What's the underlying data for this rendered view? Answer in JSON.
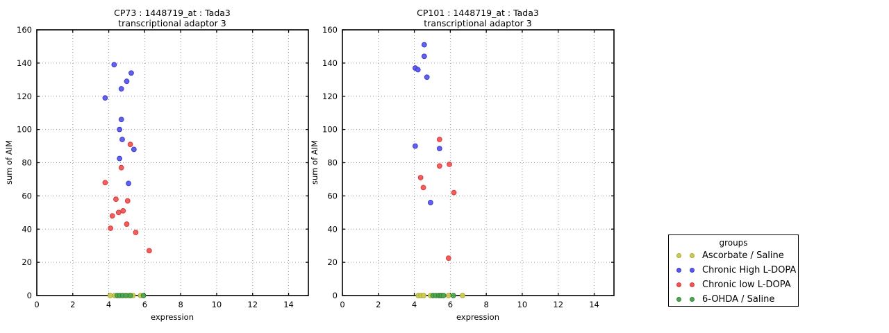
{
  "figure": {
    "background": "#ffffff"
  },
  "legend": {
    "title": "groups",
    "position": "right",
    "items": [
      {
        "label": "Ascorbate / Saline",
        "color": "#cccc55",
        "edge": "#aaaa33"
      },
      {
        "label": "Chronic High L-DOPA",
        "color": "#5959e8",
        "edge": "#3c3cd0"
      },
      {
        "label": "Chronic low L-DOPA",
        "color": "#f05555",
        "edge": "#d83c3c"
      },
      {
        "label": "6-OHDA / Saline",
        "color": "#4da64d",
        "edge": "#378437"
      }
    ]
  },
  "chart_data": [
    {
      "type": "scatter",
      "id": "CP73",
      "title_line1": "CP73 : 1448719_at : Tada3",
      "title_line2": "transcriptional adaptor 3",
      "xlabel": "expression",
      "ylabel": "sum of AIM",
      "xlim": [
        0,
        15.1
      ],
      "ylim": [
        0,
        160
      ],
      "xticks": [
        0,
        2,
        4,
        6,
        8,
        10,
        12,
        14
      ],
      "yticks": [
        0,
        20,
        40,
        60,
        80,
        100,
        120,
        140,
        160
      ],
      "grid": true,
      "series": [
        {
          "name": "Ascorbate / Saline",
          "color": "#cccc55",
          "edge": "#aaaa33",
          "points": [
            [
              4.08,
              0
            ],
            [
              4.33,
              0
            ],
            [
              5.08,
              0
            ],
            [
              5.35,
              0
            ],
            [
              5.77,
              0
            ]
          ]
        },
        {
          "name": "6-OHDA / Saline",
          "color": "#4da64d",
          "edge": "#378437",
          "points": [
            [
              4.47,
              0
            ],
            [
              4.62,
              0
            ],
            [
              4.78,
              0
            ],
            [
              4.95,
              0
            ],
            [
              5.2,
              0
            ],
            [
              5.93,
              0
            ]
          ]
        },
        {
          "name": "Chronic High L-DOPA",
          "color": "#5959e8",
          "edge": "#3c3cd0",
          "points": [
            [
              4.3,
              139
            ],
            [
              5.25,
              134
            ],
            [
              5.0,
              129
            ],
            [
              4.7,
              124.5
            ],
            [
              3.8,
              119
            ],
            [
              4.7,
              106
            ],
            [
              4.6,
              100
            ],
            [
              4.75,
              94
            ],
            [
              5.4,
              88
            ],
            [
              4.6,
              82.5
            ],
            [
              5.1,
              67.5
            ]
          ]
        },
        {
          "name": "Chronic low L-DOPA",
          "color": "#f05555",
          "edge": "#d83c3c",
          "points": [
            [
              5.2,
              91
            ],
            [
              4.7,
              77
            ],
            [
              3.8,
              68
            ],
            [
              4.4,
              58
            ],
            [
              5.05,
              57
            ],
            [
              4.8,
              51
            ],
            [
              4.55,
              50
            ],
            [
              4.2,
              48
            ],
            [
              5.0,
              43
            ],
            [
              4.1,
              40.5
            ],
            [
              5.5,
              38
            ],
            [
              6.25,
              27
            ]
          ]
        }
      ]
    },
    {
      "type": "scatter",
      "id": "CP101",
      "title_line1": "CP101 : 1448719_at : Tada3",
      "title_line2": "transcriptional adaptor 3",
      "xlabel": "expression",
      "ylabel": "sum of AIM",
      "xlim": [
        0,
        15.1
      ],
      "ylim": [
        0,
        160
      ],
      "xticks": [
        0,
        2,
        4,
        6,
        8,
        10,
        12,
        14
      ],
      "yticks": [
        0,
        20,
        40,
        60,
        80,
        100,
        120,
        140,
        160
      ],
      "grid": true,
      "series": [
        {
          "name": "Ascorbate / Saline",
          "color": "#cccc55",
          "edge": "#aaaa33",
          "points": [
            [
              4.22,
              0
            ],
            [
              4.37,
              0
            ],
            [
              4.52,
              0
            ],
            [
              4.9,
              0
            ],
            [
              5.9,
              0
            ],
            [
              6.68,
              0
            ]
          ]
        },
        {
          "name": "6-OHDA / Saline",
          "color": "#4da64d",
          "edge": "#378437",
          "points": [
            [
              5.04,
              0
            ],
            [
              5.2,
              0
            ],
            [
              5.36,
              0
            ],
            [
              5.45,
              0
            ],
            [
              5.52,
              0
            ],
            [
              5.63,
              0
            ],
            [
              6.17,
              0
            ]
          ]
        },
        {
          "name": "Chronic High L-DOPA",
          "color": "#5959e8",
          "edge": "#3c3cd0",
          "points": [
            [
              4.55,
              151
            ],
            [
              4.55,
              144
            ],
            [
              4.05,
              137
            ],
            [
              4.2,
              136
            ],
            [
              4.7,
              131.5
            ],
            [
              4.05,
              90
            ],
            [
              5.4,
              88.5
            ],
            [
              4.9,
              56
            ]
          ]
        },
        {
          "name": "Chronic low L-DOPA",
          "color": "#f05555",
          "edge": "#d83c3c",
          "points": [
            [
              5.4,
              94
            ],
            [
              5.4,
              78
            ],
            [
              5.95,
              79
            ],
            [
              4.35,
              71
            ],
            [
              4.5,
              65
            ],
            [
              6.2,
              62
            ],
            [
              5.9,
              22.5
            ]
          ]
        }
      ]
    }
  ]
}
